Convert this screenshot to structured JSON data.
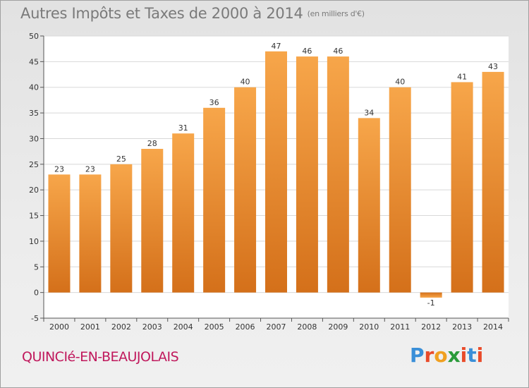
{
  "title": {
    "main": "Autres Impôts et Taxes de 2000 à 2014",
    "unit": "(en milliers d'€)"
  },
  "place_name": "QUINCIé-EN-BEAUJOLAIS",
  "logo": {
    "letters": [
      "P",
      "r",
      "o",
      "x",
      "i",
      "t",
      "i"
    ],
    "colors": [
      "#3a8fd8",
      "#e94b2a",
      "#f0a020",
      "#2a9a3a",
      "#e94b2a",
      "#3a8fd8",
      "#e94b2a"
    ]
  },
  "colors": {
    "bar_top": "#f7a64a",
    "bar_bottom": "#d4701a",
    "grid": "#d8d8d8",
    "axis": "#555555"
  },
  "chart_data": {
    "type": "bar",
    "categories": [
      "2000",
      "2001",
      "2002",
      "2003",
      "2004",
      "2005",
      "2006",
      "2007",
      "2008",
      "2009",
      "2010",
      "2011",
      "2012",
      "2013",
      "2014"
    ],
    "values": [
      23,
      23,
      25,
      28,
      31,
      36,
      40,
      47,
      46,
      46,
      34,
      40,
      -1,
      41,
      43
    ],
    "title": "Autres Impôts et Taxes de 2000 à 2014",
    "unit": "(en milliers d'€)",
    "xlabel": "",
    "ylabel": "",
    "ylim": [
      -5,
      50
    ],
    "yticks": [
      -5,
      0,
      5,
      10,
      15,
      20,
      25,
      30,
      35,
      40,
      45,
      50
    ],
    "grid": true
  }
}
